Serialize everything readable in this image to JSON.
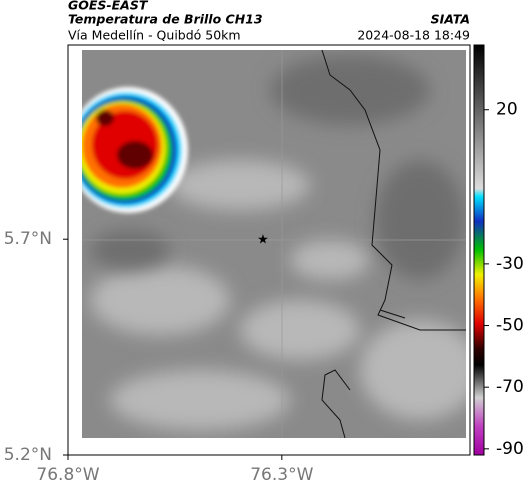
{
  "header": {
    "title": "GOES-EAST",
    "subtitle": "Temperatura de Brillo CH13",
    "region": "Vía Medellín - Quibdó 50km",
    "source": "SIATA",
    "datetime": "2024-08-18 18:49"
  },
  "map": {
    "xlim": [
      -76.8,
      -75.86
    ],
    "ylim": [
      5.2,
      6.15
    ],
    "xticks": [
      {
        "value": -76.8,
        "label": "76.8°W"
      },
      {
        "value": -76.3,
        "label": "76.3°W"
      }
    ],
    "yticks": [
      {
        "value": 5.7,
        "label": "5.7°N"
      },
      {
        "value": 5.2,
        "label": "5.2°N"
      }
    ]
  },
  "colorbar": {
    "lim": [
      -92,
      41
    ],
    "ticks": [
      20,
      -30,
      -50,
      -70,
      -90
    ]
  }
}
